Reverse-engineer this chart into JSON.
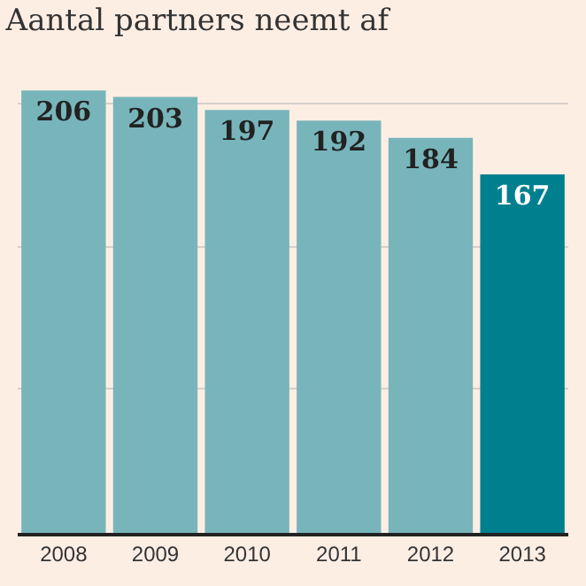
{
  "chart_data": {
    "type": "bar",
    "title": "Aantal partners neemt af",
    "categories": [
      "2008",
      "2009",
      "2010",
      "2011",
      "2012",
      "2013"
    ],
    "values": [
      206,
      203,
      197,
      192,
      184,
      167
    ],
    "colors": [
      "#77b5bb",
      "#77b5bb",
      "#77b5bb",
      "#77b5bb",
      "#77b5bb",
      "#00808f"
    ],
    "yticks": [
      {
        "value": 0,
        "label": null
      },
      {
        "value": 67,
        "label": null
      },
      {
        "value": 133,
        "label": null
      },
      {
        "value": 200,
        "label": null
      }
    ],
    "grid": "y",
    "tick_labels": "x",
    "data_labels": true
  }
}
